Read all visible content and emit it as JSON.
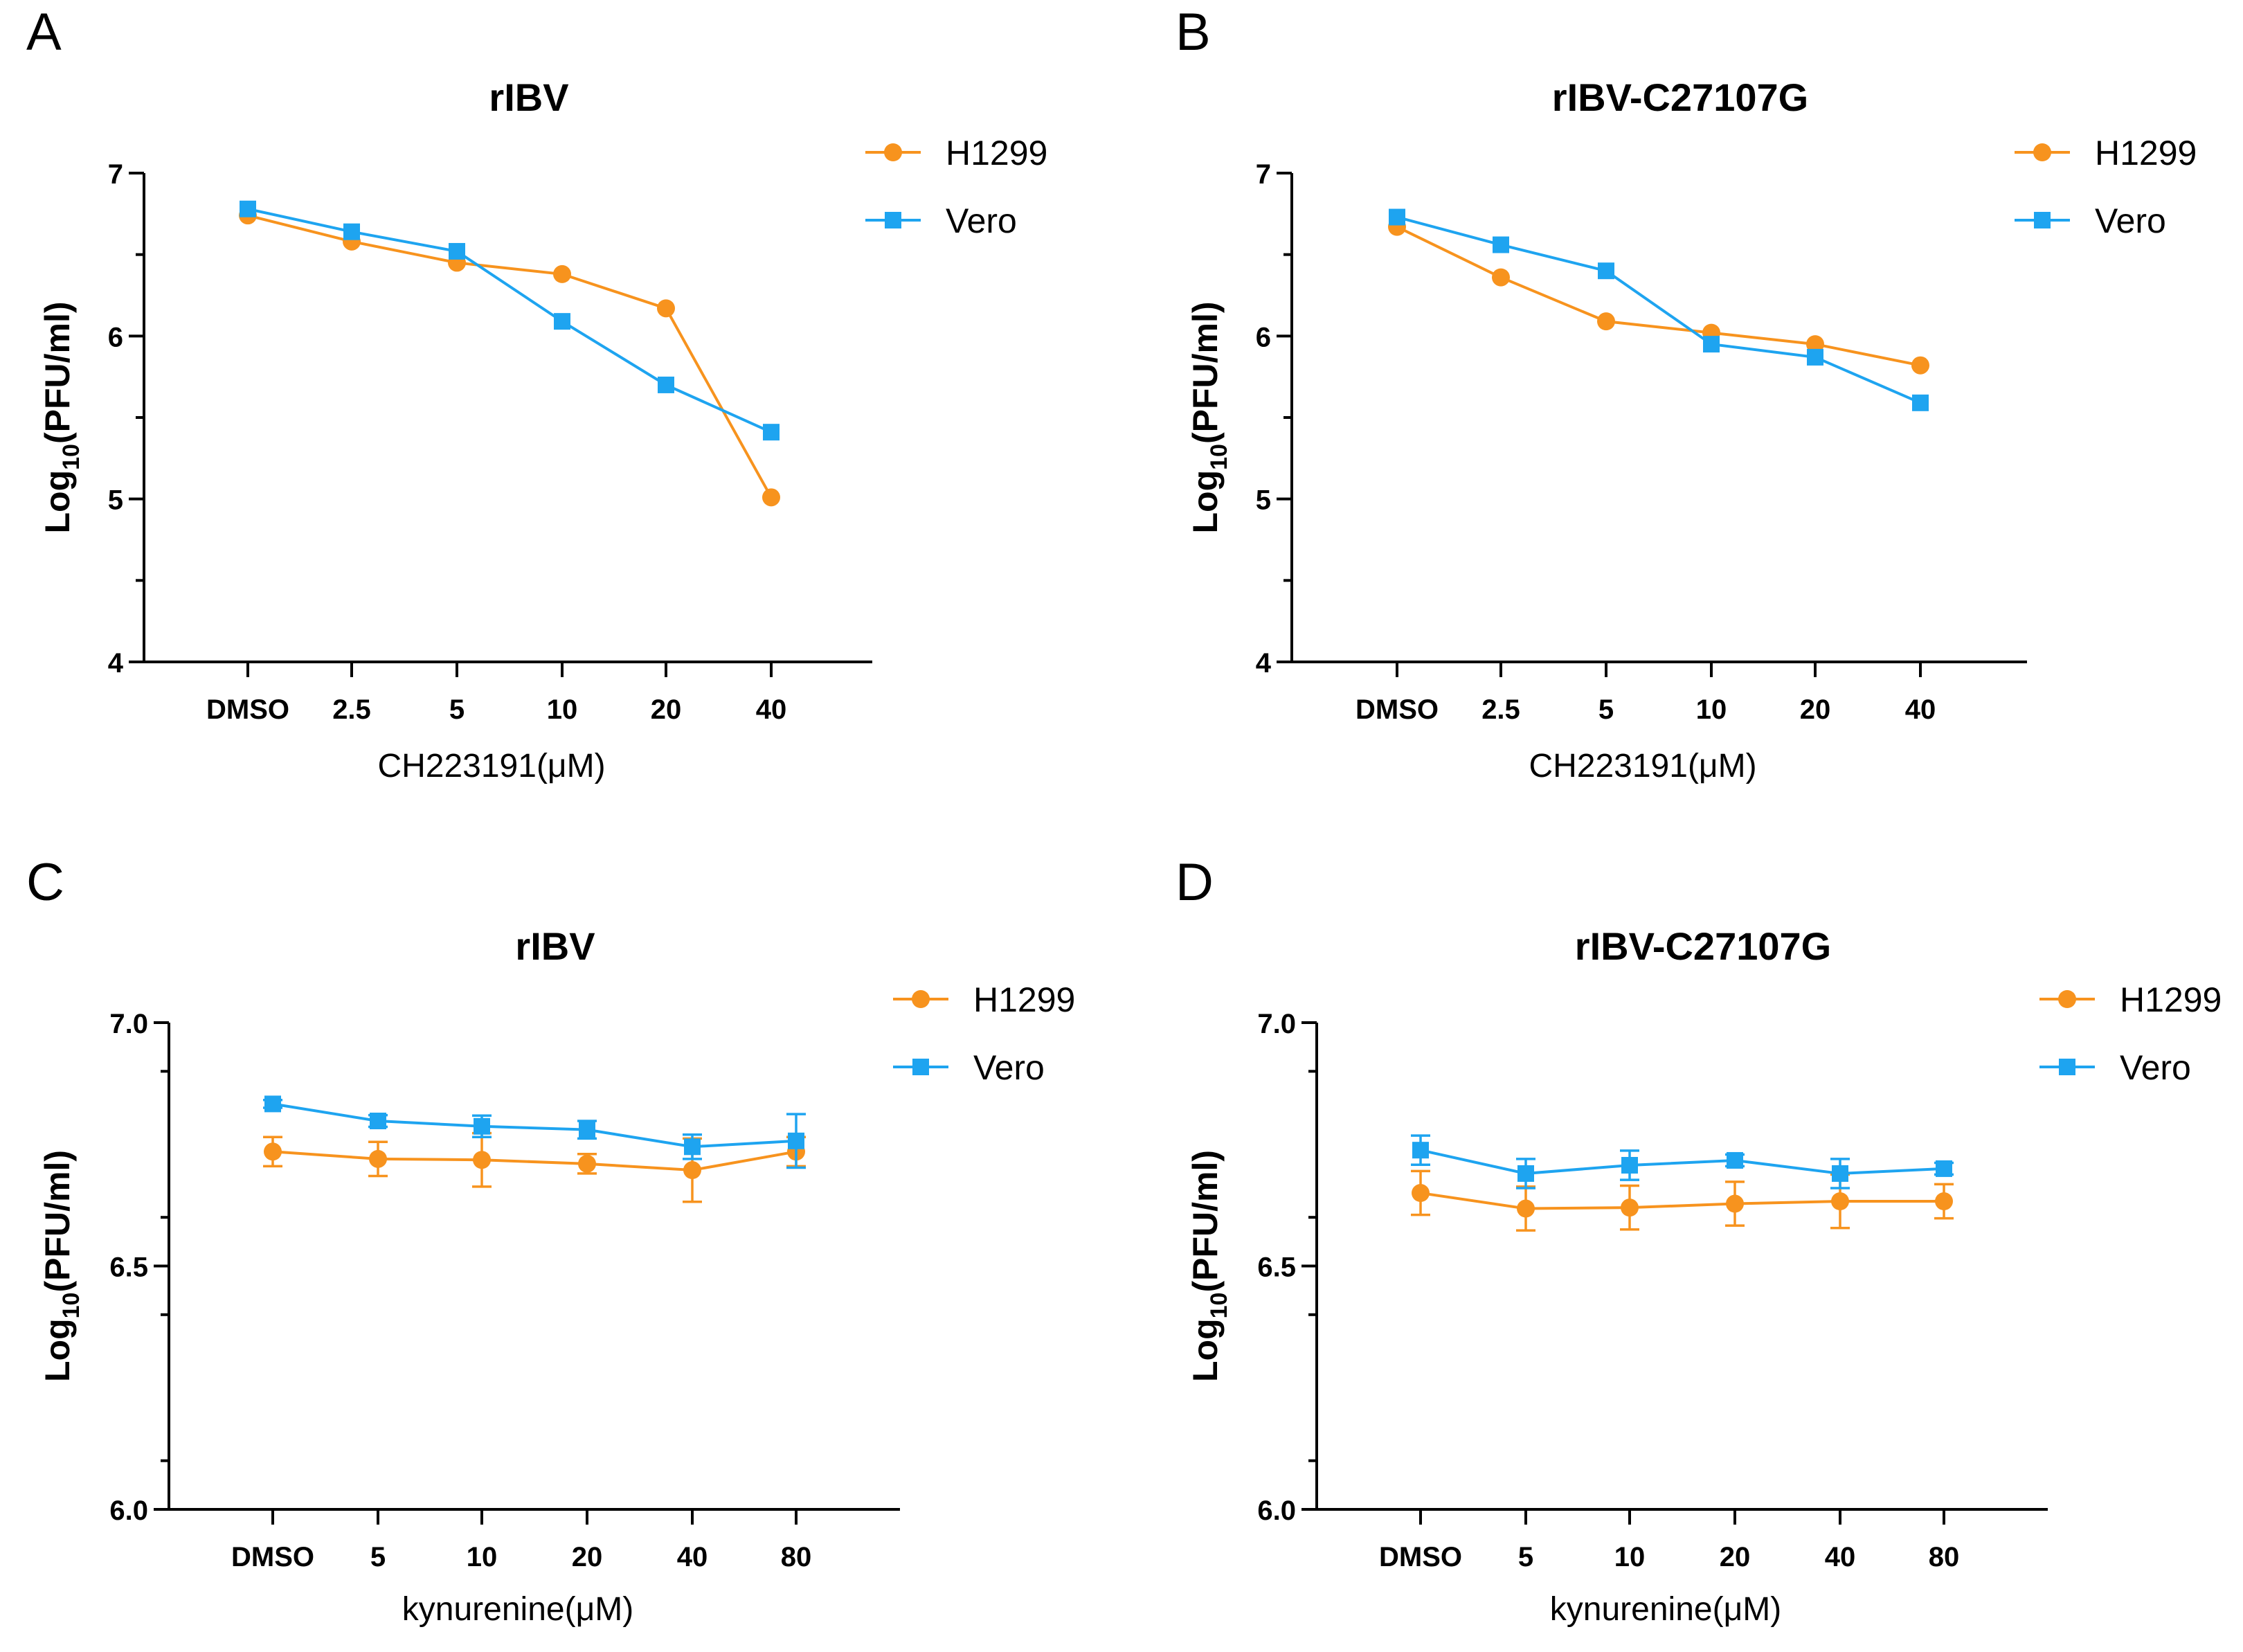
{
  "colors": {
    "h1299": "#F7931E",
    "vero": "#1EA4F0",
    "axis": "#000000"
  },
  "chart_data": [
    {
      "panel": "A",
      "type": "line",
      "title": "rIBV",
      "xlabel": "CH223191(μM)",
      "ylabel_main": "Log",
      "ylabel_sub": "10",
      "ylabel_end": "(PFU/ml)",
      "categories": [
        "DMSO",
        "2.5",
        "5",
        "10",
        "20",
        "40"
      ],
      "ylim": [
        4,
        7
      ],
      "yticks": [
        4,
        5,
        6,
        7
      ],
      "ytick_labels": [
        "4",
        "5",
        "6",
        "7"
      ],
      "series": [
        {
          "name": "H1299",
          "marker": "circle",
          "values": [
            6.74,
            6.58,
            6.45,
            6.38,
            6.17,
            5.01
          ]
        },
        {
          "name": "Vero",
          "marker": "square",
          "values": [
            6.78,
            6.64,
            6.52,
            6.09,
            5.7,
            5.41
          ]
        }
      ]
    },
    {
      "panel": "B",
      "type": "line",
      "title": "rIBV-C27107G",
      "xlabel": "CH223191(μM)",
      "ylabel_main": "Log",
      "ylabel_sub": "10",
      "ylabel_end": "(PFU/ml)",
      "categories": [
        "DMSO",
        "2.5",
        "5",
        "10",
        "20",
        "40"
      ],
      "ylim": [
        4,
        7
      ],
      "yticks": [
        4,
        5,
        6,
        7
      ],
      "ytick_labels": [
        "4",
        "5",
        "6",
        "7"
      ],
      "series": [
        {
          "name": "H1299",
          "marker": "circle",
          "values": [
            6.67,
            6.36,
            6.09,
            6.02,
            5.95,
            5.82
          ]
        },
        {
          "name": "Vero",
          "marker": "square",
          "values": [
            6.73,
            6.56,
            6.4,
            5.95,
            5.87,
            5.59
          ]
        }
      ]
    },
    {
      "panel": "C",
      "type": "line",
      "title": "rIBV",
      "xlabel": "kynurenine(μM)",
      "ylabel_main": "Log",
      "ylabel_sub": "10",
      "ylabel_end": "(PFU/ml)",
      "categories": [
        "DMSO",
        "5",
        "10",
        "20",
        "40",
        "80"
      ],
      "ylim": [
        6.0,
        7.0
      ],
      "yticks": [
        6.0,
        6.5,
        7.0
      ],
      "ytick_labels": [
        "6.0",
        "6.5",
        "7.0"
      ],
      "series": [
        {
          "name": "H1299",
          "marker": "circle",
          "values": [
            6.735,
            6.72,
            6.718,
            6.71,
            6.697,
            6.735
          ],
          "errors": [
            0.03,
            0.035,
            0.055,
            0.02,
            0.065,
            0.03
          ]
        },
        {
          "name": "Vero",
          "marker": "square",
          "values": [
            6.833,
            6.798,
            6.787,
            6.78,
            6.745,
            6.757
          ],
          "errors": [
            0.008,
            0.012,
            0.022,
            0.018,
            0.025,
            0.055
          ]
        }
      ]
    },
    {
      "panel": "D",
      "type": "line",
      "title": "rIBV-C27107G",
      "xlabel": "kynurenine(μM)",
      "ylabel_main": "Log",
      "ylabel_sub": "10",
      "ylabel_end": "(PFU/ml)",
      "categories": [
        "DMSO",
        "5",
        "10",
        "20",
        "40",
        "80"
      ],
      "ylim": [
        6.0,
        7.0
      ],
      "yticks": [
        6.0,
        6.5,
        7.0
      ],
      "ytick_labels": [
        "6.0",
        "6.5",
        "7.0"
      ],
      "series": [
        {
          "name": "H1299",
          "marker": "circle",
          "values": [
            6.65,
            6.618,
            6.62,
            6.628,
            6.633,
            6.633
          ],
          "errors": [
            0.045,
            0.045,
            0.045,
            0.045,
            0.055,
            0.035
          ]
        },
        {
          "name": "Vero",
          "marker": "square",
          "values": [
            6.738,
            6.69,
            6.707,
            6.717,
            6.69,
            6.7
          ],
          "errors": [
            0.03,
            0.03,
            0.03,
            0.012,
            0.03,
            0.012
          ]
        }
      ]
    }
  ]
}
